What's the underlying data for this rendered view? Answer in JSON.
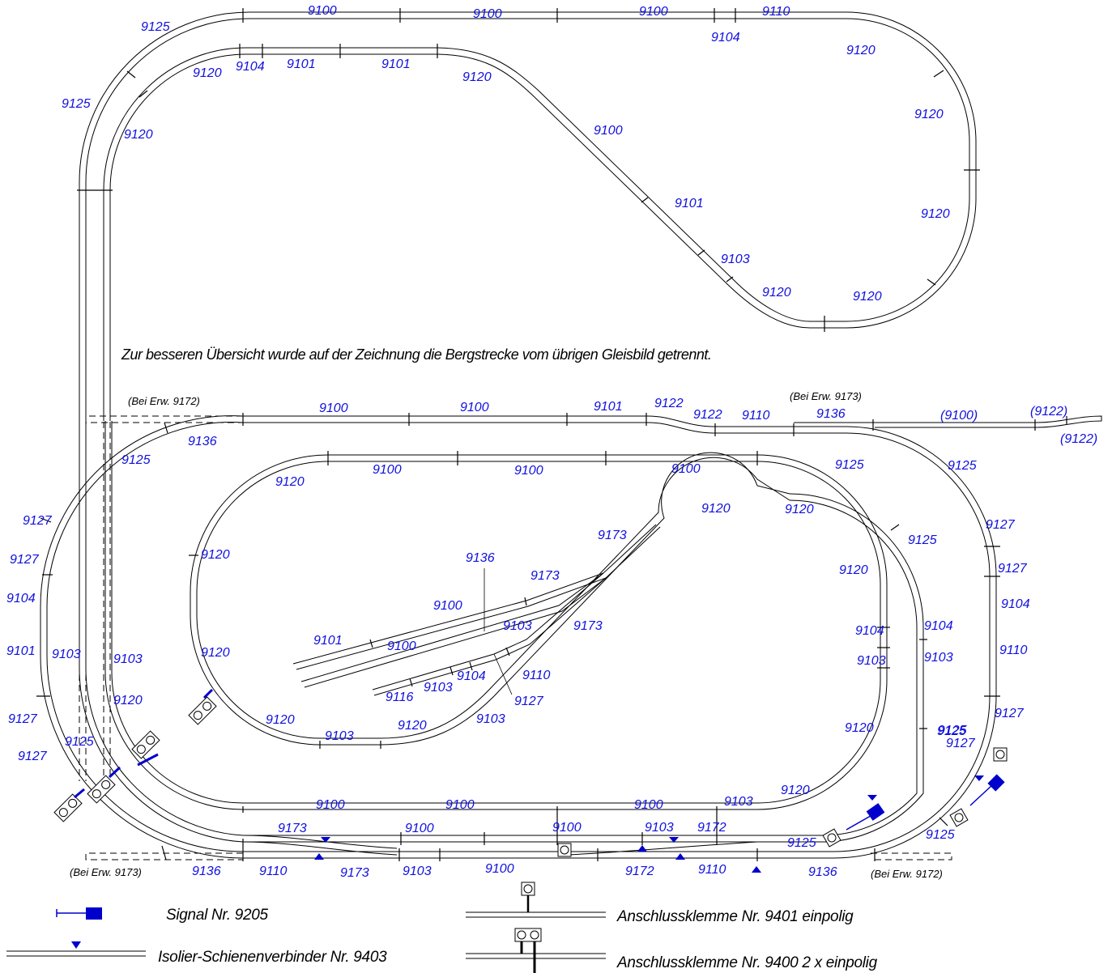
{
  "caption": "Zur besseren Übersicht wurde auf der Zeichnung die Bergstrecke vom übrigen Gleisbild getrennt.",
  "notes": {
    "bei_9172_top": "(Bei Erw. 9172)",
    "bei_9173_top": "(Bei Erw. 9173)",
    "bei_9173_bottom": "(Bei Erw. 9173)",
    "bei_9172_bottom": "(Bei Erw. 9172)"
  },
  "legend": {
    "signal": "Signal Nr. 9205",
    "isolier": "Isolier-Schienenverbinder Nr. 9403",
    "klemme_9401": "Anschlussklemme Nr. 9401 einpolig",
    "klemme_9400": "Anschlussklemme Nr. 9400   2 x einpolig"
  },
  "labels": {
    "m1": "9125",
    "m2": "9100",
    "m3": "9100",
    "m4": "9100",
    "m5": "9110",
    "m6": "9104",
    "m7": "9120",
    "m8": "9104",
    "m9": "9101",
    "m10": "9101",
    "m11": "9120",
    "m12": "9120",
    "m13": "9125",
    "m14": "9120",
    "m15": "9100",
    "m16": "9120",
    "m17": "9120",
    "m18": "9101",
    "m19": "9103",
    "m20": "9120",
    "m21": "9120",
    "o1": "9100",
    "o2": "9100",
    "o3": "9101",
    "o4": "9122",
    "o5": "9122",
    "o6": "9110",
    "o7": "9136",
    "o8": "(9100)",
    "o9": "(9122)",
    "o10": "(9122)",
    "o11": "9136",
    "o12": "9125",
    "o13": "9127",
    "o14": "9127",
    "o15": "9104",
    "o16": "9101",
    "o17": "9127",
    "o18": "9127",
    "o19": "9125",
    "o20": "9125",
    "o21": "9127",
    "o22": "9127",
    "o23": "9104",
    "o24": "9110",
    "o25": "9127",
    "o26": "9127",
    "o27": "9125",
    "o28": "9125",
    "i1": "9120",
    "i2": "9100",
    "i3": "9100",
    "i4": "9100",
    "i5": "9125",
    "i6": "9120",
    "i7": "9120",
    "i8": "9125",
    "i9": "9120",
    "i10": "9104",
    "i11": "9103",
    "i12": "9104",
    "i13": "9103",
    "i14": "9103",
    "i15": "9103",
    "i16": "9120",
    "i17": "9120",
    "i18": "9125",
    "i19": "9120",
    "i20": "9125",
    "c1": "9120",
    "c2": "9120",
    "c3": "9120",
    "c4": "9103",
    "c5": "9120",
    "c6": "9103",
    "c7": "9173",
    "c8": "9136",
    "c9": "9173",
    "c10": "9100",
    "c11": "9101",
    "c12": "9100",
    "c13": "9173",
    "c14": "9103",
    "c15": "9110",
    "c16": "9104",
    "c17": "9103",
    "c18": "9116",
    "c19": "9127",
    "b1": "9100",
    "b2": "9100",
    "b3": "9100",
    "b4": "9103",
    "b5": "9173",
    "b6": "9100",
    "b7": "9100",
    "b8": "9103",
    "b9": "9172",
    "b10": "9136",
    "b11": "9110",
    "b12": "9173",
    "b13": "9103",
    "b14": "9100",
    "b15": "9172",
    "b16": "9110",
    "b17": "9136"
  },
  "colors": {
    "track": "#000000",
    "annotation": "#1010e0",
    "accessory": "#0000cc"
  }
}
